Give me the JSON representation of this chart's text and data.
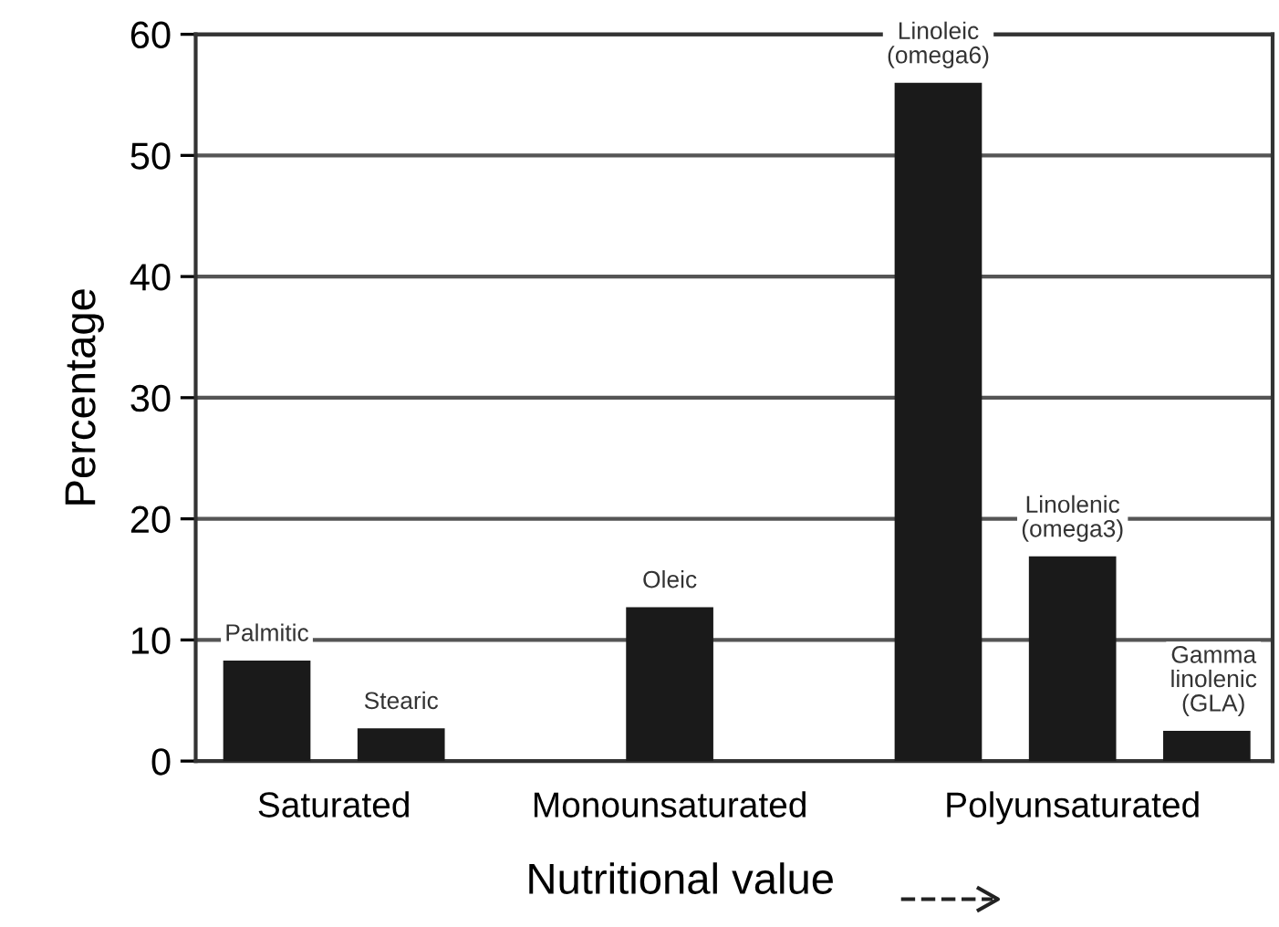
{
  "chart_data": {
    "type": "bar",
    "xlabel": "Nutritional value",
    "ylabel": "Percentage",
    "categories": [
      "Palmitic",
      "Stearic",
      null,
      "Oleic",
      null,
      "Linoleic\n(omega6)",
      "Linolenic\n(omega3)",
      "Gamma\nlinolenic\n(GLA)"
    ],
    "values": [
      8.3,
      2.7,
      null,
      12.7,
      null,
      56,
      16.9,
      2.5
    ],
    "color": "#1a1a1a",
    "annotations": [
      "Saturated",
      "Monounsaturated",
      "Polyunsaturated"
    ],
    "ylim": [
      0,
      60
    ],
    "yticks": [
      0,
      10,
      20,
      30,
      40,
      50,
      60
    ],
    "grid": "y"
  }
}
